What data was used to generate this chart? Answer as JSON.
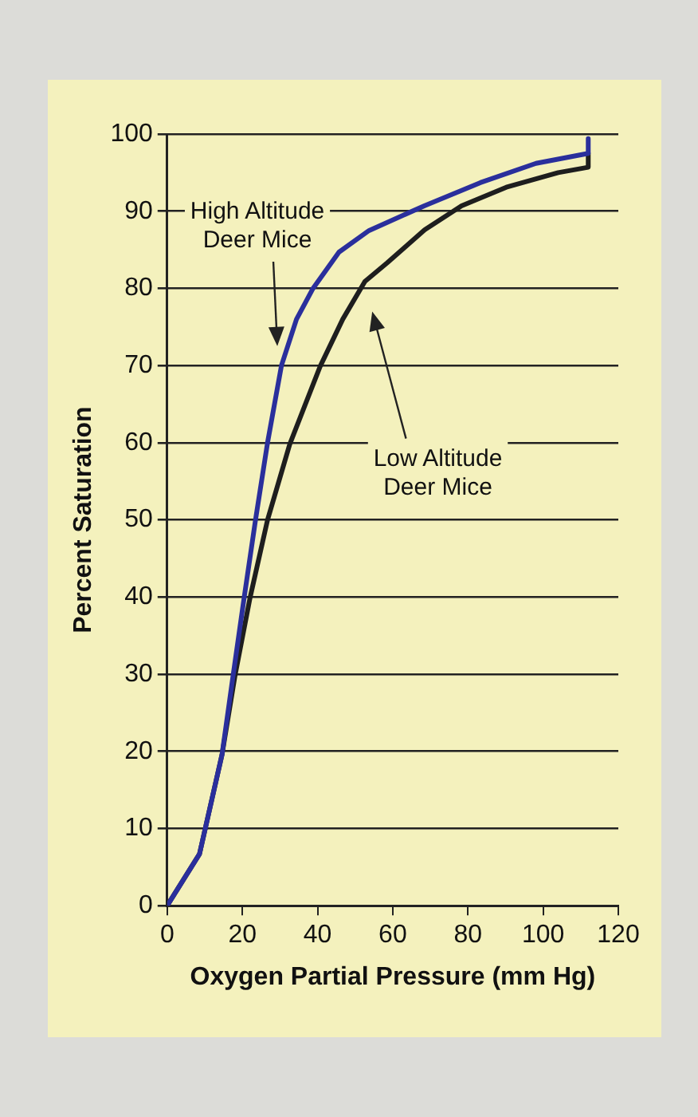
{
  "chart_data": {
    "type": "line",
    "ylabel": "Percent Saturation",
    "xlabel": "Oxygen Partial Pressure (mm Hg)",
    "xlim": [
      0,
      120
    ],
    "xticks": [
      0,
      20,
      40,
      60,
      80,
      100,
      120
    ],
    "ylim": [
      0,
      100
    ],
    "yticks": [
      0,
      10,
      20,
      30,
      40,
      50,
      60,
      70,
      80,
      90,
      100
    ],
    "grid": "y",
    "marker": "none",
    "line_style": "solid",
    "legend": false,
    "annotations": [
      "High Altitude Deer Mice",
      "Low Altitude Deer Mice"
    ],
    "series": [
      {
        "color": "#2a2f9c",
        "x": [
          0,
          8.6,
          14.6,
          17.5,
          20.5,
          23.5,
          26.7,
          30.4,
          34.4,
          38.8,
          45.7,
          53.7,
          68.4,
          83.3,
          98.1,
          112,
          112
        ],
        "values": [
          0,
          6.7,
          19.6,
          29.7,
          40,
          50,
          60,
          70,
          76,
          80,
          84.7,
          87.5,
          90.7,
          93.7,
          96.2,
          97.5,
          99.4
        ]
      },
      {
        "color": "#1e1e1e",
        "x": [
          0,
          8.6,
          14.6,
          18,
          22,
          26.7,
          32.6,
          40.7,
          46.7,
          52.6,
          58.5,
          68.5,
          78.3,
          90.2,
          104,
          112,
          112
        ],
        "values": [
          0,
          6.7,
          19.6,
          29.7,
          39.8,
          50,
          59.8,
          69.9,
          76,
          80.9,
          83.3,
          87.6,
          90.7,
          93.1,
          95,
          95.7,
          97.5
        ]
      }
    ]
  }
}
